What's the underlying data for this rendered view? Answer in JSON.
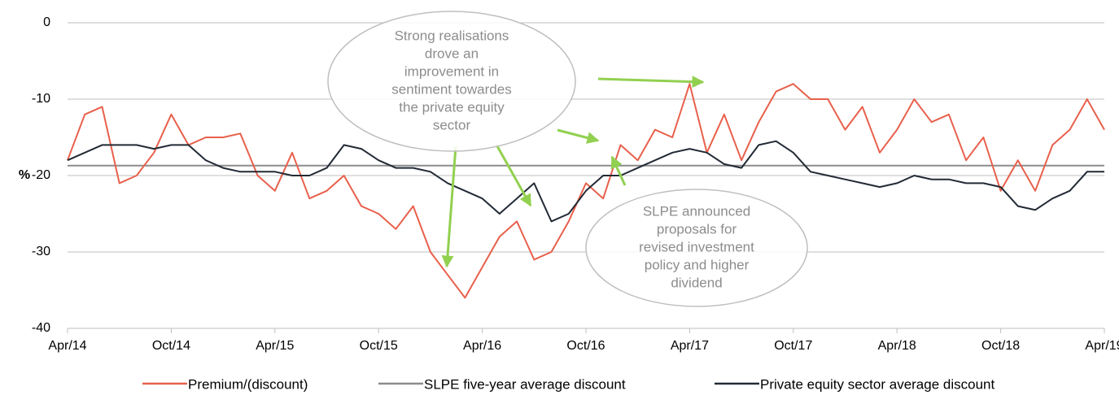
{
  "chart_data": {
    "type": "line",
    "ylabel": "%",
    "categories": [
      "Apr/14",
      null,
      null,
      null,
      null,
      null,
      "Oct/14",
      null,
      null,
      null,
      null,
      null,
      "Apr/15",
      null,
      null,
      null,
      null,
      null,
      "Oct/15",
      null,
      null,
      null,
      null,
      null,
      "Apr/16",
      null,
      null,
      null,
      null,
      null,
      "Oct/16",
      null,
      null,
      null,
      null,
      null,
      "Apr/17",
      null,
      null,
      null,
      null,
      null,
      "Oct/17",
      null,
      null,
      null,
      null,
      null,
      "Apr/18",
      null,
      null,
      null,
      null,
      null,
      "Oct/18",
      null,
      null,
      null,
      null,
      null,
      "Apr/19"
    ],
    "series": [
      {
        "name": "Premium/(discount)",
        "color": "#e8604c",
        "values": [
          -18,
          -12,
          -11,
          -21,
          -20,
          -17,
          -12,
          -16,
          -15,
          -15,
          -14.5,
          -20,
          -22,
          -17,
          -23,
          -22,
          -20,
          -24,
          -25,
          -27,
          -24,
          -30,
          -33,
          -36,
          -32,
          -28,
          -26,
          -31,
          -30,
          -26,
          -21,
          -23,
          -16,
          -18,
          -14,
          -15,
          -8,
          -17,
          -12,
          -18,
          -13,
          -9,
          -8,
          -10,
          -10,
          -14,
          -11,
          -17,
          -14,
          -10,
          -13,
          -12,
          -18,
          -15,
          -22,
          -18,
          -22,
          -16,
          -14,
          -10,
          -14
        ]
      },
      {
        "name": "SLPE five-year average discount",
        "color": "#8c8c8c",
        "values": [
          -18.7,
          -18.7,
          -18.7,
          -18.7,
          -18.7,
          -18.7,
          -18.7,
          -18.7,
          -18.7,
          -18.7,
          -18.7,
          -18.7,
          -18.7,
          -18.7,
          -18.7,
          -18.7,
          -18.7,
          -18.7,
          -18.7,
          -18.7,
          -18.7,
          -18.7,
          -18.7,
          -18.7,
          -18.7,
          -18.7,
          -18.7,
          -18.7,
          -18.7,
          -18.7,
          -18.7,
          -18.7,
          -18.7,
          -18.7,
          -18.7,
          -18.7,
          -18.7,
          -18.7,
          -18.7,
          -18.7,
          -18.7,
          -18.7,
          -18.7,
          -18.7,
          -18.7,
          -18.7,
          -18.7,
          -18.7,
          -18.7,
          -18.7,
          -18.7,
          -18.7,
          -18.7,
          -18.7,
          -18.7,
          -18.7,
          -18.7,
          -18.7,
          -18.7,
          -18.7,
          -18.7
        ]
      },
      {
        "name": "Private equity sector average discount",
        "color": "#222a35",
        "values": [
          -18,
          -17,
          -16,
          -16,
          -16,
          -16.5,
          -16,
          -16,
          -18,
          -19,
          -19.5,
          -19.5,
          -19.5,
          -20,
          -20,
          -19,
          -16,
          -16.5,
          -18,
          -19,
          -19,
          -19.5,
          -21,
          -22,
          -23,
          -25,
          -23,
          -21,
          -26,
          -25,
          -22,
          -20,
          -20,
          -19,
          -18,
          -17,
          -16.5,
          -17,
          -18.5,
          -19,
          -16,
          -15.5,
          -17,
          -19.5,
          -20,
          -20.5,
          -21,
          -21.5,
          -21,
          -20,
          -20.5,
          -20.5,
          -21,
          -21,
          -21.5,
          -24,
          -24.5,
          -23,
          -22,
          -19.5,
          -19.5
        ]
      }
    ],
    "ylim": [
      -40,
      0
    ],
    "yticks": [
      -40,
      -30,
      -20,
      -10,
      0
    ],
    "grid": true,
    "annotations": [
      [
        "Strong realisations",
        "drove an",
        "improvement in",
        "sentiment towardes",
        "the private equity",
        "sector"
      ],
      [
        "SLPE announced",
        "proposals for",
        "revised investment",
        "policy and higher",
        "dividend"
      ]
    ]
  }
}
